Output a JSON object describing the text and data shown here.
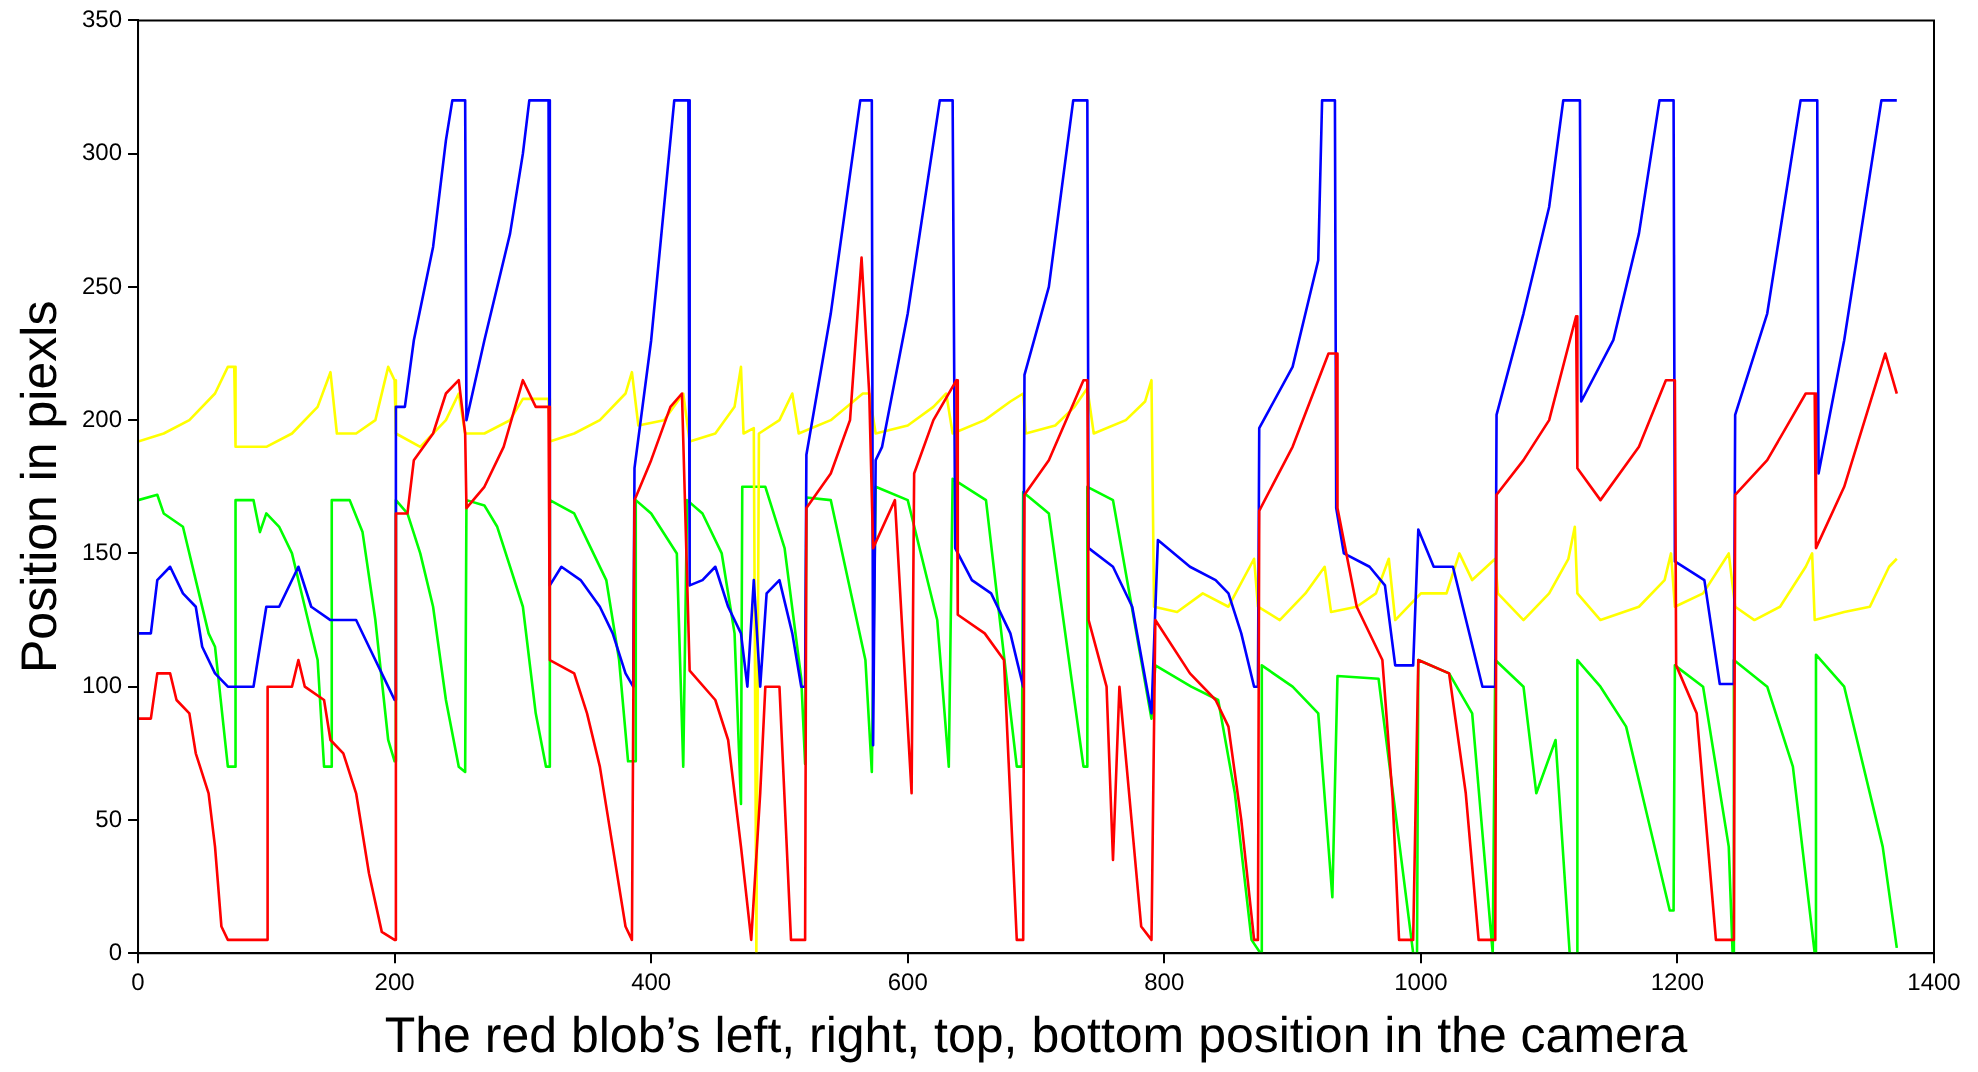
{
  "chart_data": {
    "type": "line",
    "xlabel": "The red blob’s left, right, top, bottom position in the camera",
    "ylabel": "Position in piexls",
    "xlim": [
      0,
      1400
    ],
    "xticks": [
      0,
      200,
      400,
      600,
      800,
      1000,
      1200,
      1400
    ],
    "ylim": [
      0,
      350
    ],
    "yticks": [
      0,
      50,
      100,
      150,
      200,
      250,
      300,
      350
    ],
    "grid": false,
    "legend": false,
    "marker": "none",
    "line_style": "solid",
    "series": [
      {
        "color": "#ff0000",
        "x": [
          0,
          10,
          15,
          25,
          30,
          40,
          45,
          55,
          60,
          65,
          70,
          100,
          101,
          120,
          125,
          130,
          145,
          150,
          160,
          170,
          180,
          190,
          200,
          201,
          210,
          215,
          230,
          240,
          250,
          255,
          256,
          270,
          285,
          300,
          310,
          320,
          321,
          340,
          350,
          360,
          370,
          380,
          385,
          387,
          400,
          415,
          424,
          430,
          450,
          460,
          470,
          478,
          485,
          489,
          500,
          509,
          520,
          521,
          540,
          555,
          564,
          570,
          573,
          590,
          603,
          605,
          620,
          638,
          639,
          660,
          675,
          685,
          690,
          691,
          710,
          737,
          740,
          741,
          755,
          760,
          765,
          782,
          790,
          793,
          820,
          840,
          850,
          860,
          870,
          873,
          874,
          900,
          928,
          934,
          935,
          950,
          970,
          978,
          983,
          994,
          998,
          1022,
          1035,
          1045,
          1058,
          1059,
          1080,
          1100,
          1121,
          1122,
          1140,
          1170,
          1191,
          1198,
          1199,
          1215,
          1230,
          1244,
          1245,
          1270,
          1300,
          1307,
          1308,
          1330,
          1362,
          1371
        ],
        "values": [
          88,
          88,
          105,
          105,
          95,
          90,
          75,
          60,
          40,
          10,
          5,
          5,
          100,
          100,
          110,
          100,
          95,
          80,
          75,
          60,
          30,
          8,
          5,
          165,
          165,
          185,
          195,
          210,
          215,
          195,
          167,
          175,
          190,
          215,
          205,
          205,
          110,
          105,
          90,
          70,
          40,
          10,
          5,
          170,
          185,
          205,
          210,
          106,
          95,
          80,
          40,
          5,
          60,
          100,
          100,
          5,
          5,
          167,
          180,
          200,
          261,
          210,
          152,
          170,
          60,
          180,
          200,
          215,
          127,
          120,
          110,
          5,
          5,
          172,
          185,
          215,
          215,
          125,
          100,
          35,
          100,
          10,
          5,
          125,
          105,
          95,
          85,
          50,
          5,
          5,
          166,
          190,
          225,
          225,
          167,
          130,
          110,
          58,
          5,
          5,
          110,
          105,
          60,
          5,
          5,
          172,
          185,
          200,
          239,
          182,
          170,
          190,
          215,
          215,
          108,
          90,
          5,
          5,
          172,
          185,
          210,
          210,
          152,
          175,
          225,
          210
        ]
      },
      {
        "color": "#0000ff",
        "x": [
          0,
          10,
          15,
          25,
          35,
          45,
          50,
          60,
          70,
          90,
          100,
          110,
          125,
          135,
          150,
          170,
          180,
          195,
          200,
          201,
          208,
          215,
          230,
          240,
          245,
          255,
          256,
          270,
          290,
          300,
          305,
          320,
          321,
          330,
          345,
          360,
          370,
          380,
          386,
          387,
          400,
          418,
          429,
          430,
          440,
          450,
          460,
          470,
          475,
          480,
          485,
          490,
          500,
          510,
          517,
          520,
          521,
          540,
          563,
          572,
          573,
          575,
          580,
          600,
          625,
          635,
          637,
          650,
          665,
          680,
          690,
          691,
          710,
          729,
          740,
          741,
          760,
          775,
          790,
          795,
          820,
          840,
          850,
          860,
          870,
          873,
          874,
          900,
          920,
          923,
          933,
          934,
          940,
          960,
          972,
          980,
          994,
          998,
          1010,
          1025,
          1048,
          1058,
          1059,
          1080,
          1100,
          1111,
          1124,
          1125,
          1150,
          1170,
          1186,
          1197,
          1198,
          1221,
          1233,
          1244,
          1245,
          1270,
          1296,
          1309,
          1310,
          1330,
          1359,
          1371
        ],
        "values": [
          120,
          120,
          140,
          145,
          135,
          130,
          115,
          105,
          100,
          100,
          130,
          130,
          145,
          130,
          125,
          125,
          115,
          100,
          95,
          205,
          205,
          230,
          265,
          305,
          320,
          320,
          200,
          230,
          270,
          300,
          320,
          320,
          138,
          145,
          140,
          130,
          120,
          105,
          100,
          182,
          230,
          320,
          320,
          138,
          140,
          145,
          130,
          120,
          100,
          140,
          100,
          135,
          140,
          120,
          100,
          100,
          187,
          240,
          320,
          320,
          78,
          185,
          190,
          240,
          320,
          320,
          152,
          140,
          135,
          120,
          100,
          217,
          250,
          320,
          320,
          152,
          145,
          130,
          90,
          155,
          145,
          140,
          135,
          120,
          100,
          100,
          197,
          220,
          260,
          320,
          320,
          167,
          150,
          145,
          138,
          108,
          108,
          159,
          145,
          145,
          100,
          100,
          202,
          240,
          280,
          320,
          320,
          207,
          230,
          270,
          320,
          320,
          147,
          140,
          101,
          101,
          202,
          240,
          320,
          320,
          180,
          230,
          320,
          320
        ]
      },
      {
        "color": "#ffff00",
        "x": [
          0,
          20,
          40,
          60,
          70,
          75,
          76,
          100,
          120,
          140,
          150,
          155,
          170,
          185,
          195,
          200,
          201,
          220,
          240,
          250,
          255,
          270,
          290,
          300,
          320,
          321,
          340,
          360,
          380,
          385,
          390,
          410,
          425,
          430,
          450,
          465,
          470,
          472,
          480,
          482,
          484,
          500,
          510,
          515,
          540,
          565,
          570,
          575,
          600,
          620,
          630,
          635,
          660,
          680,
          690,
          692,
          715,
          730,
          740,
          745,
          770,
          785,
          790,
          792,
          810,
          830,
          850,
          870,
          873,
          890,
          910,
          925,
          930,
          950,
          965,
          975,
          980,
          1000,
          1020,
          1030,
          1040,
          1058,
          1060,
          1080,
          1100,
          1115,
          1120,
          1122,
          1140,
          1170,
          1190,
          1195,
          1198,
          1220,
          1240,
          1245,
          1260,
          1280,
          1300,
          1305,
          1307,
          1330,
          1350,
          1365,
          1371
        ],
        "values": [
          192,
          195,
          200,
          210,
          220,
          220,
          190,
          190,
          195,
          205,
          218,
          195,
          195,
          200,
          220,
          215,
          195,
          190,
          200,
          210,
          195,
          195,
          200,
          208,
          208,
          192,
          195,
          200,
          210,
          218,
          198,
          200,
          210,
          192,
          195,
          205,
          220,
          195,
          197,
          0,
          195,
          200,
          210,
          195,
          200,
          210,
          210,
          195,
          198,
          205,
          210,
          195,
          200,
          207,
          210,
          195,
          198,
          205,
          212,
          195,
          200,
          207,
          215,
          130,
          128,
          135,
          130,
          148,
          130,
          125,
          135,
          145,
          128,
          130,
          135,
          148,
          125,
          135,
          135,
          150,
          140,
          148,
          135,
          125,
          135,
          148,
          160,
          135,
          125,
          130,
          140,
          150,
          130,
          135,
          150,
          130,
          125,
          130,
          145,
          150,
          125,
          128,
          130,
          145,
          148
        ]
      },
      {
        "color": "#00ff00",
        "x": [
          0,
          15,
          20,
          35,
          45,
          55,
          60,
          70,
          75,
          76,
          90,
          95,
          100,
          110,
          120,
          130,
          140,
          145,
          150,
          151,
          165,
          175,
          185,
          195,
          200,
          201,
          210,
          220,
          230,
          240,
          250,
          255,
          256,
          270,
          280,
          300,
          310,
          318,
          320,
          321,
          340,
          350,
          365,
          375,
          382,
          387,
          388,
          400,
          420,
          425,
          428,
          440,
          455,
          465,
          470,
          471,
          489,
          504,
          517,
          520,
          521,
          540,
          567,
          572,
          575,
          600,
          623,
          632,
          635,
          661,
          685,
          689,
          690,
          710,
          737,
          739,
          740,
          760,
          790,
          793,
          821,
          842,
          855,
          868,
          875,
          876,
          900,
          920,
          931,
          935,
          967,
          994,
          997,
          998,
          1022,
          1040,
          1056,
          1058,
          1080,
          1090,
          1105,
          1116,
          1121,
          1122,
          1140,
          1160,
          1194,
          1197,
          1198,
          1220,
          1240,
          1243,
          1244,
          1270,
          1290,
          1307,
          1308,
          1330,
          1340,
          1360,
          1371
        ],
        "values": [
          170,
          172,
          165,
          160,
          140,
          120,
          115,
          70,
          70,
          170,
          170,
          158,
          165,
          160,
          150,
          130,
          110,
          70,
          70,
          170,
          170,
          158,
          125,
          80,
          72,
          170,
          165,
          150,
          130,
          95,
          70,
          68,
          170,
          168,
          160,
          130,
          90,
          70,
          70,
          170,
          165,
          155,
          140,
          110,
          72,
          72,
          170,
          165,
          150,
          70,
          170,
          165,
          150,
          120,
          56,
          175,
          175,
          152,
          103,
          71,
          171,
          170,
          110,
          68,
          175,
          170,
          125,
          70,
          178,
          170,
          70,
          70,
          173,
          165,
          70,
          70,
          175,
          170,
          88,
          108,
          100,
          95,
          60,
          5,
          0,
          108,
          100,
          90,
          21,
          104,
          103,
          0,
          0,
          110,
          105,
          90,
          0,
          110,
          100,
          60,
          80,
          0,
          0,
          110,
          100,
          85,
          16,
          16,
          108,
          100,
          40,
          0,
          110,
          100,
          70,
          0,
          112,
          100,
          80,
          40,
          2
        ]
      }
    ]
  }
}
